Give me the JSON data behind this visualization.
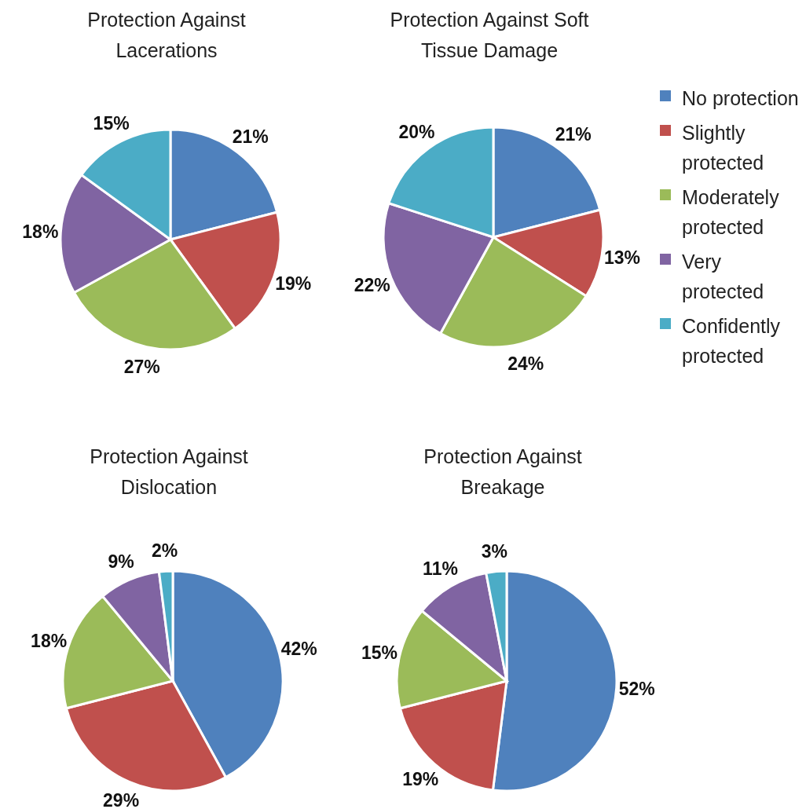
{
  "chart_data": [
    {
      "type": "pie",
      "title": "Protection Against Lacerations",
      "values": [
        21,
        19,
        27,
        18,
        15
      ],
      "value_labels": [
        "21%",
        "19%",
        "27%",
        "18%",
        "15%"
      ],
      "colors": [
        "#4f81bd",
        "#c0504d",
        "#9bbb59",
        "#8064a2",
        "#4bacc6"
      ]
    },
    {
      "type": "pie",
      "title": "Protection Against Soft Tissue Damage",
      "categories": [
        "No protection",
        "Slightly protected",
        "Moderately protected",
        "Very protected",
        "Confidently protected"
      ],
      "values": [
        21,
        13,
        24,
        22,
        20
      ],
      "value_labels": [
        "21%",
        "13%",
        "24%",
        "22%",
        "20%"
      ],
      "colors": [
        "#4f81bd",
        "#c0504d",
        "#9bbb59",
        "#8064a2",
        "#4bacc6"
      ],
      "legend": "right"
    },
    {
      "type": "pie",
      "title": "Protection Against Dislocation",
      "values": [
        42,
        29,
        18,
        9,
        2
      ],
      "value_labels": [
        "42%",
        "29%",
        "18%",
        "9%",
        "2%"
      ],
      "colors": [
        "#4f81bd",
        "#c0504d",
        "#9bbb59",
        "#8064a2",
        "#4bacc6"
      ]
    },
    {
      "type": "pie",
      "title": "Protection Against Breakage",
      "values": [
        52,
        19,
        15,
        11,
        3
      ],
      "value_labels": [
        "52%",
        "19%",
        "15%",
        "11%",
        "3%"
      ],
      "colors": [
        "#4f81bd",
        "#c0504d",
        "#9bbb59",
        "#8064a2",
        "#4bacc6"
      ]
    }
  ]
}
